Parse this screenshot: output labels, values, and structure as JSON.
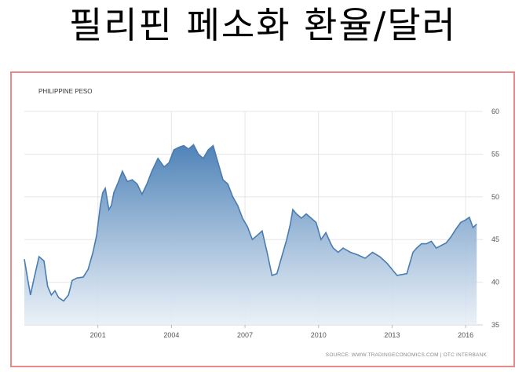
{
  "title": "필리핀 페소화 환율/달러",
  "chart_data": {
    "type": "area",
    "title": "PHILIPPINE PESO",
    "source": "SOURCE: WWW.TRADINGECONOMICS.COM | OTC INTERBANK",
    "xlabel": "",
    "ylabel": "",
    "xlim": [
      1998.0,
      2016.7
    ],
    "ylim": [
      35,
      60
    ],
    "x_ticks": [
      2001,
      2004,
      2007,
      2010,
      2013,
      2016
    ],
    "x_tick_labels": [
      "2001",
      "2004",
      "2007",
      "2010",
      "2013",
      "2016"
    ],
    "y_ticks": [
      35,
      40,
      45,
      50,
      55,
      60
    ],
    "y_tick_labels": [
      "35",
      "40",
      "45",
      "50",
      "55",
      "60"
    ],
    "grid": true,
    "colors": {
      "line": "#4a7cb0",
      "fill_top": "#4f83b8",
      "fill_bottom": "#e8eff7"
    },
    "series": [
      {
        "x": [
          1998.0,
          1998.1,
          1998.25,
          1998.4,
          1998.6,
          1998.8,
          1998.95,
          1999.1,
          1999.25,
          1999.4,
          1999.6,
          1999.8,
          1999.95,
          2000.15,
          2000.4,
          2000.6,
          2000.8,
          2000.95,
          2001.1,
          2001.2,
          2001.3,
          2001.45,
          2001.55,
          2001.65,
          2001.8,
          2002.0,
          2002.2,
          2002.4,
          2002.6,
          2002.8,
          2003.0,
          2003.2,
          2003.45,
          2003.7,
          2003.9,
          2004.1,
          2004.3,
          2004.5,
          2004.7,
          2004.9,
          2005.1,
          2005.3,
          2005.5,
          2005.7,
          2005.9,
          2006.1,
          2006.3,
          2006.5,
          2006.7,
          2006.9,
          2007.1,
          2007.3,
          2007.5,
          2007.7,
          2007.9,
          2008.1,
          2008.3,
          2008.5,
          2008.7,
          2008.85,
          2008.95,
          2009.1,
          2009.3,
          2009.5,
          2009.7,
          2009.9,
          2010.1,
          2010.3,
          2010.5,
          2010.6,
          2010.8,
          2011.0,
          2011.3,
          2011.6,
          2011.9,
          2012.2,
          2012.5,
          2012.8,
          2013.0,
          2013.2,
          2013.4,
          2013.6,
          2013.85,
          2014.0,
          2014.2,
          2014.4,
          2014.6,
          2014.8,
          2015.0,
          2015.2,
          2015.4,
          2015.6,
          2015.8,
          2016.0,
          2016.15,
          2016.3,
          2016.45
        ],
        "y": [
          42.7,
          41.0,
          38.5,
          40.5,
          43.0,
          42.5,
          39.5,
          38.5,
          39.0,
          38.2,
          37.8,
          38.5,
          40.2,
          40.5,
          40.6,
          41.5,
          43.5,
          45.5,
          49.0,
          50.5,
          51.0,
          48.5,
          49.0,
          50.5,
          51.5,
          53.0,
          51.8,
          52.0,
          51.5,
          50.3,
          51.5,
          53.0,
          54.5,
          53.5,
          54.0,
          55.5,
          55.8,
          56.0,
          55.6,
          56.1,
          55.0,
          54.5,
          55.5,
          56.0,
          54.0,
          52.0,
          51.5,
          50.0,
          49.0,
          47.5,
          46.5,
          45.0,
          45.5,
          46.0,
          43.5,
          40.8,
          41.0,
          43.0,
          45.0,
          46.8,
          48.5,
          48.0,
          47.5,
          48.0,
          47.5,
          47.0,
          45.0,
          45.8,
          44.5,
          44.0,
          43.5,
          44.0,
          43.5,
          43.2,
          42.8,
          43.5,
          43.0,
          42.2,
          41.5,
          40.8,
          40.9,
          41.0,
          43.5,
          44.0,
          44.5,
          44.5,
          44.8,
          44.0,
          44.3,
          44.6,
          45.3,
          46.2,
          47.0,
          47.3,
          47.6,
          46.4,
          46.8
        ]
      }
    ]
  }
}
